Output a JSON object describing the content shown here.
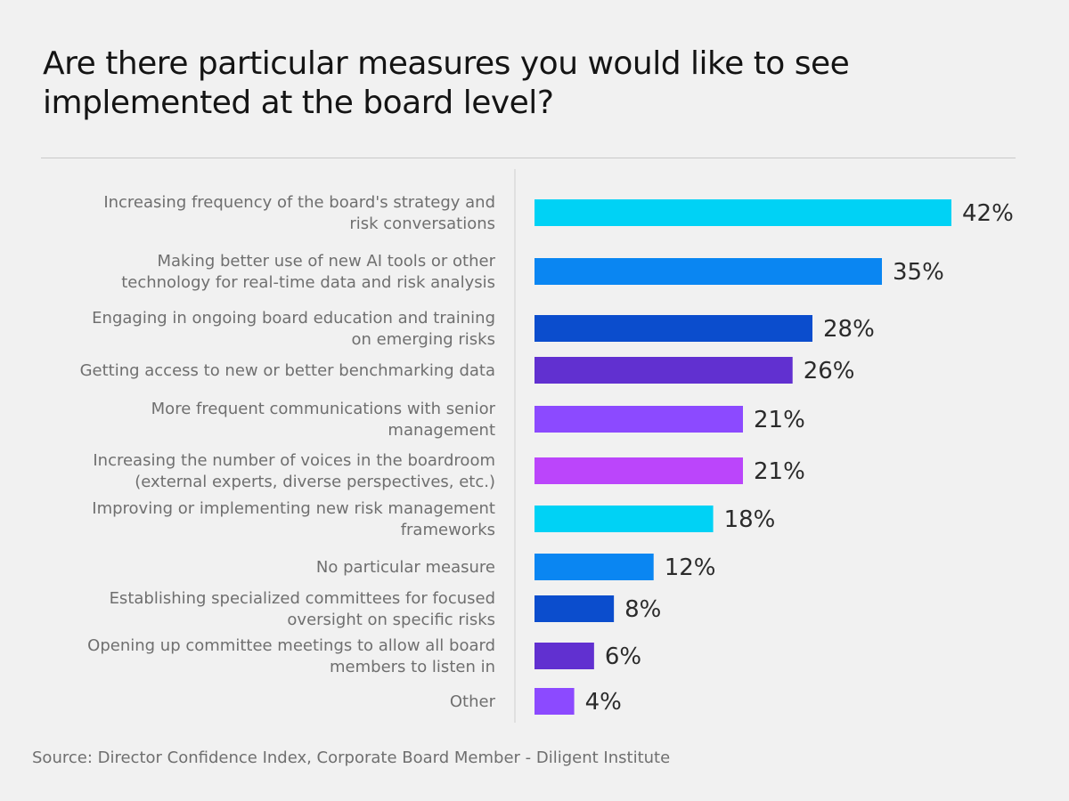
{
  "chart_data": {
    "type": "bar",
    "orientation": "horizontal",
    "title": "Are there particular measures you would like to see implemented at the board level?",
    "source": "Source: Director Confidence Index, Corporate Board Member - Diligent Institute",
    "value_suffix": "%",
    "xlim": [
      0,
      42
    ],
    "categories": [
      [
        "Increasing frequency of the board's strategy and",
        "risk conversations"
      ],
      [
        "Making better use of new AI tools or other",
        "technology for real-time data and risk analysis"
      ],
      [
        "Engaging in ongoing board education and training",
        "on emerging risks"
      ],
      [
        "Getting access to new or better benchmarking data"
      ],
      [
        "More frequent communications with senior",
        "management"
      ],
      [
        "Increasing the number of voices in the boardroom",
        "(external experts, diverse perspectives, etc.)"
      ],
      [
        "Improving or implementing new risk management",
        "frameworks"
      ],
      [
        "No particular measure"
      ],
      [
        "Establishing specialized committees for focused",
        "oversight on specific risks"
      ],
      [
        "Opening up committee meetings to allow all board",
        "members to listen in"
      ],
      [
        "Other"
      ]
    ],
    "values": [
      42,
      35,
      28,
      26,
      21,
      21,
      18,
      12,
      8,
      6,
      4
    ],
    "colors": [
      "#00d2f5",
      "#0a86f2",
      "#0b4dcd",
      "#6130d0",
      "#8c4aff",
      "#bb45fb",
      "#00d2f5",
      "#0a86f2",
      "#0b4dcd",
      "#6130d0",
      "#8c4aff"
    ]
  }
}
